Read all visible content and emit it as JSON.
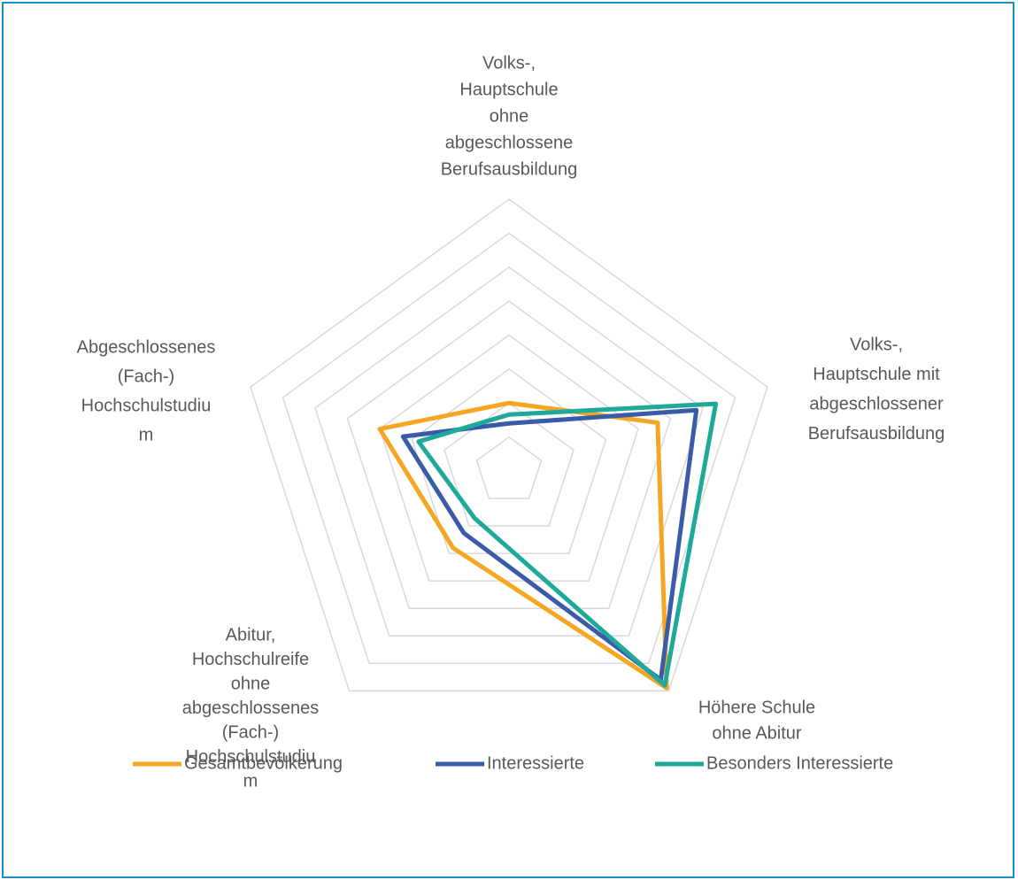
{
  "chart_data": {
    "type": "radar",
    "categories": [
      [
        "Volks-,",
        "Hauptschule",
        "ohne",
        "abgeschlossene",
        "Berufsausbildung"
      ],
      [
        "Volks-,",
        "Hauptschule mit",
        "abgeschlossener",
        "Berufsausbildung"
      ],
      [
        "Höhere Schule",
        "ohne Abitur"
      ],
      [
        "Abitur,",
        "Hochschulreife",
        "ohne",
        "abgeschlossenes",
        "(Fach-)",
        "Hochschulstudiu",
        "m"
      ],
      [
        "Abgeschlossenes",
        "(Fach-)",
        "Hochschulstudiu",
        "m"
      ]
    ],
    "series": [
      {
        "name": "Gesamtbevölkerung",
        "color": "#f5a623",
        "values": [
          10,
          23,
          39.5,
          14,
          20
        ]
      },
      {
        "name": "Interessierte",
        "color": "#3a5ba8",
        "values": [
          7,
          29,
          38,
          11.3,
          16.4
        ]
      },
      {
        "name": "Besonders Interessierte",
        "color": "#1fa99a",
        "values": [
          8.3,
          32,
          39,
          8.6,
          14
        ]
      }
    ],
    "ylim": [
      0,
      40
    ],
    "yticks": [
      5,
      10,
      15,
      20,
      25,
      30,
      35,
      40
    ],
    "grid": true,
    "legend": "bottom"
  }
}
